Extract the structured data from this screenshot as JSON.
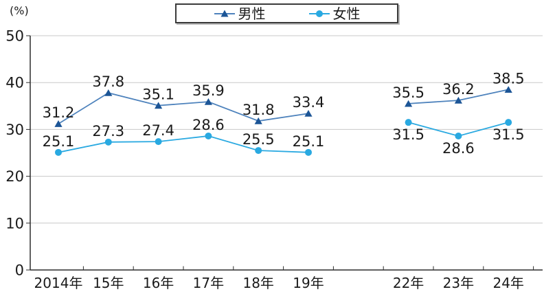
{
  "chart_data": {
    "type": "line",
    "title": "",
    "unit_label": "(%)",
    "xlabel": "",
    "ylabel": "(%)",
    "ylim": [
      0,
      50
    ],
    "yticks": [
      0,
      10,
      20,
      30,
      40,
      50
    ],
    "grid": true,
    "legend_position": "top-center",
    "categories": [
      "2014年",
      "15年",
      "16年",
      "17年",
      "18年",
      "19年",
      null,
      "22年",
      "23年",
      "24年"
    ],
    "series": [
      {
        "name": "男性",
        "marker": "triangle",
        "line_color": "#4d82bc",
        "marker_color": "#1c5596",
        "values": [
          31.2,
          37.8,
          35.1,
          35.9,
          31.8,
          33.4,
          null,
          35.5,
          36.2,
          38.5
        ],
        "label_positions": [
          "above",
          "above",
          "above",
          "above",
          "above",
          "above",
          null,
          "above",
          "above",
          "above"
        ]
      },
      {
        "name": "女性",
        "marker": "circle",
        "line_color": "#29a9e1",
        "marker_color": "#29a9e1",
        "values": [
          25.1,
          27.3,
          27.4,
          28.6,
          25.5,
          25.1,
          null,
          31.5,
          28.6,
          31.5
        ],
        "label_positions": [
          "above",
          "above",
          "above",
          "above",
          "above",
          "above",
          null,
          "below",
          "below",
          "below"
        ]
      }
    ],
    "colors": {
      "text": "#1a1a1a",
      "grid": "#c8c8c8",
      "axis": "#2b2b2b",
      "background": "#ffffff"
    }
  }
}
